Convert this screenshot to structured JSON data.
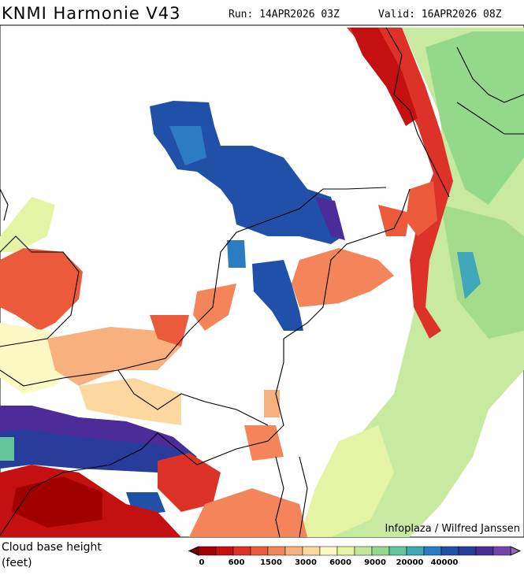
{
  "header": {
    "title": "KNMI Harmonie V43",
    "run": "Run: 14APR2026 03Z",
    "valid": "Valid: 16APR2026 08Z"
  },
  "map": {
    "credit": "Infoplaza / Wilfred Janssen"
  },
  "legend": {
    "label_line1": "Cloud base height",
    "label_line2": "(feet)",
    "colors": [
      "#7a0000",
      "#a00000",
      "#c41010",
      "#dc3228",
      "#ec5a3c",
      "#f4845a",
      "#f8b07c",
      "#fcd8a0",
      "#fcf8c4",
      "#e4f4a4",
      "#c0e89c",
      "#94d88c",
      "#64c49c",
      "#40a8b8",
      "#2c7cc4",
      "#2050a8",
      "#283c9c",
      "#4c2c98",
      "#7444a8",
      "#9c64c0"
    ],
    "ticks": [
      0,
      600,
      1500,
      3000,
      6000,
      9000,
      20000,
      40000
    ]
  }
}
